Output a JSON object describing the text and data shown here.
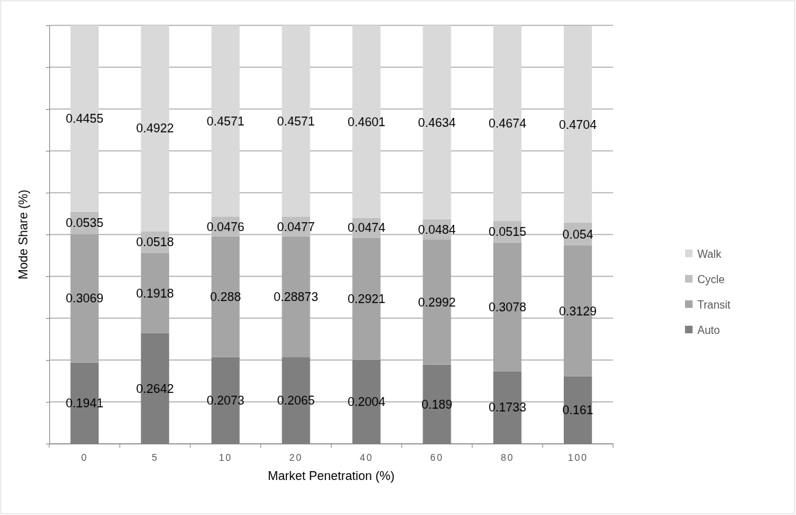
{
  "chart_data": {
    "type": "bar",
    "stacked": true,
    "xlabel": "Market Penetration (%)",
    "ylabel": "Mode Share (%)",
    "categories": [
      "0",
      "5",
      "10",
      "20",
      "40",
      "60",
      "80",
      "100"
    ],
    "series": [
      {
        "name": "Auto",
        "color": "#7f7f7f",
        "values": [
          0.1941,
          0.2642,
          0.2073,
          0.2065,
          0.2004,
          0.189,
          0.1733,
          0.161
        ]
      },
      {
        "name": "Transit",
        "color": "#a5a5a5",
        "values": [
          0.3069,
          0.1918,
          0.288,
          0.28873,
          0.2921,
          0.2992,
          0.3078,
          0.3129
        ]
      },
      {
        "name": "Cycle",
        "color": "#bfbfbf",
        "values": [
          0.0535,
          0.0518,
          0.0476,
          0.0477,
          0.0474,
          0.0484,
          0.0515,
          0.054
        ]
      },
      {
        "name": "Walk",
        "color": "#d9d9d9",
        "values": [
          0.4455,
          0.4922,
          0.4571,
          0.4571,
          0.4601,
          0.4634,
          0.4674,
          0.4704
        ]
      }
    ],
    "ylim": [
      0,
      1
    ],
    "yticks": [
      {
        "value": 0,
        "label": null
      },
      {
        "value": 0.1,
        "label": null
      },
      {
        "value": 0.2,
        "label": null
      },
      {
        "value": 0.3,
        "label": null
      },
      {
        "value": 0.4,
        "label": null
      },
      {
        "value": 0.5,
        "label": null
      },
      {
        "value": 0.6,
        "label": null
      },
      {
        "value": 0.7,
        "label": null
      },
      {
        "value": 0.8,
        "label": null
      },
      {
        "value": 0.9,
        "label": null
      },
      {
        "value": 1,
        "label": null
      }
    ],
    "tick_labels": "x",
    "grid": "y",
    "legend": "right",
    "data_labels": true
  }
}
